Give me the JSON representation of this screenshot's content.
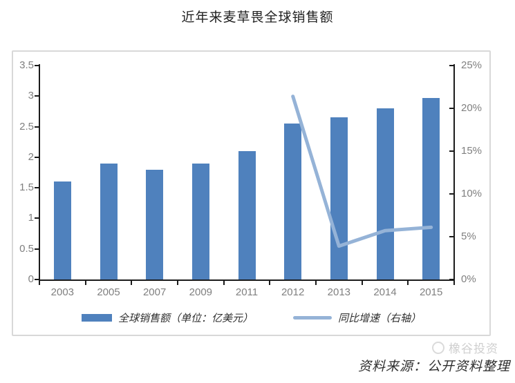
{
  "title": "近年来麦草畏全球销售额",
  "source_note": "资料来源：公开资料整理",
  "watermark": "橡谷投资",
  "colors": {
    "bar": "#4f81bd",
    "line": "#95b3d7",
    "axis": "#1a1a1a",
    "tick_label": "#7f7f7f",
    "frame_border": "#d8d8d8"
  },
  "chart_data": {
    "type": "bar",
    "title": "近年来麦草畏全球销售额",
    "categories": [
      "2003",
      "2005",
      "2007",
      "2009",
      "2011",
      "2012",
      "2013",
      "2014",
      "2015"
    ],
    "series": [
      {
        "name": "全球销售额（单位：亿美元）",
        "type": "bar",
        "axis": "left",
        "values": [
          1.6,
          1.9,
          1.8,
          1.9,
          2.1,
          2.55,
          2.65,
          2.8,
          2.97
        ]
      },
      {
        "name": "同比增速（右轴）",
        "type": "line",
        "axis": "right",
        "values": [
          null,
          null,
          null,
          null,
          null,
          21.4,
          3.9,
          5.7,
          6.1
        ]
      }
    ],
    "left_axis": {
      "min": 0,
      "max": 3.5,
      "step": 0.5,
      "ticks": [
        "0",
        "0.5",
        "1",
        "1.5",
        "2",
        "2.5",
        "3",
        "3.5"
      ]
    },
    "right_axis": {
      "min": 0,
      "max": 25,
      "step": 5,
      "ticks": [
        "0%",
        "5%",
        "10%",
        "15%",
        "20%",
        "25%"
      ]
    },
    "xlabel": "",
    "ylabel": "",
    "grid": false,
    "legend_position": "bottom"
  }
}
